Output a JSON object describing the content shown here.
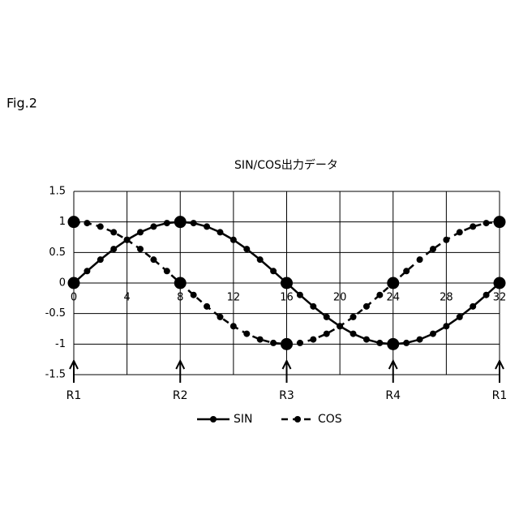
{
  "figure_label": "Fig.2",
  "chart_data": {
    "type": "line",
    "title": "SIN/COS出力データ",
    "x": [
      0,
      1,
      2,
      3,
      4,
      5,
      6,
      7,
      8,
      9,
      10,
      11,
      12,
      13,
      14,
      15,
      16,
      17,
      18,
      19,
      20,
      21,
      22,
      23,
      24,
      25,
      26,
      27,
      28,
      29,
      30,
      31,
      32
    ],
    "series": [
      {
        "name": "SIN",
        "color": "#000000",
        "dash": false,
        "values": [
          0,
          0.195,
          0.383,
          0.556,
          0.707,
          0.831,
          0.924,
          0.981,
          1,
          0.981,
          0.924,
          0.831,
          0.707,
          0.556,
          0.383,
          0.195,
          0,
          -0.195,
          -0.383,
          -0.556,
          -0.707,
          -0.831,
          -0.924,
          -0.981,
          -1,
          -0.981,
          -0.924,
          -0.831,
          -0.707,
          -0.556,
          -0.383,
          -0.195,
          0
        ]
      },
      {
        "name": "COS",
        "color": "#000000",
        "dash": true,
        "values": [
          1,
          0.981,
          0.924,
          0.831,
          0.707,
          0.556,
          0.383,
          0.195,
          0,
          -0.195,
          -0.383,
          -0.556,
          -0.707,
          -0.831,
          -0.924,
          -0.981,
          -1,
          -0.981,
          -0.924,
          -0.831,
          -0.707,
          -0.556,
          -0.383,
          -0.195,
          0,
          0.195,
          0.383,
          0.556,
          0.707,
          0.831,
          0.924,
          0.981,
          1
        ]
      }
    ],
    "xlim": [
      0,
      32
    ],
    "xticks": [
      0,
      4,
      8,
      12,
      16,
      20,
      24,
      28,
      32
    ],
    "ylim": [
      -1.5,
      1.5
    ],
    "yticks": [
      -1.5,
      -1,
      -0.5,
      0,
      0.5,
      1,
      1.5
    ],
    "grid": true,
    "legend": "bottom",
    "annotations": [
      {
        "x": 0,
        "label": "R1"
      },
      {
        "x": 8,
        "label": "R2"
      },
      {
        "x": 16,
        "label": "R3"
      },
      {
        "x": 24,
        "label": "R4"
      },
      {
        "x": 32,
        "label": "R1"
      }
    ]
  }
}
